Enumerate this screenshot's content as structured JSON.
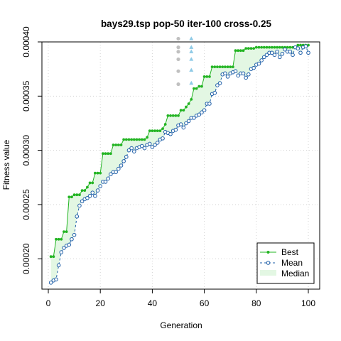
{
  "chart_data": {
    "type": "line",
    "title": "bays29.tsp pop-50 iter-100 cross-0.25",
    "xlabel": "Generation",
    "ylabel": "Fitness value",
    "xlim": [
      0,
      100
    ],
    "ylim": [
      0.000172,
      0.0004
    ],
    "xticks": [
      "0",
      "20",
      "40",
      "60",
      "80",
      "100"
    ],
    "yticks": [
      "0.00020",
      "0.00025",
      "0.00030",
      "0.00035",
      "0.00040"
    ],
    "grid": true,
    "legend_position": "bottom-right",
    "colors": {
      "best": "#22b422",
      "mean": "#1f5fa8",
      "mean_fill": "#8ec3e6",
      "median_band": "#e3f7e3",
      "dist_gray": "#c0c0c0",
      "dist_blue": "#8ecae6"
    },
    "x": [
      1,
      2,
      3,
      4,
      5,
      6,
      7,
      8,
      9,
      10,
      11,
      12,
      13,
      14,
      15,
      16,
      17,
      18,
      19,
      20,
      21,
      22,
      23,
      24,
      25,
      26,
      27,
      28,
      29,
      30,
      31,
      32,
      33,
      34,
      35,
      36,
      37,
      38,
      39,
      40,
      41,
      42,
      43,
      44,
      45,
      46,
      47,
      48,
      49,
      50,
      51,
      52,
      53,
      54,
      55,
      56,
      57,
      58,
      59,
      60,
      61,
      62,
      63,
      64,
      65,
      66,
      67,
      68,
      69,
      70,
      71,
      72,
      73,
      74,
      75,
      76,
      77,
      78,
      79,
      80,
      81,
      82,
      83,
      84,
      85,
      86,
      87,
      88,
      89,
      90,
      91,
      92,
      93,
      94,
      95,
      96,
      97,
      98,
      99,
      100
    ],
    "series": [
      {
        "name": "Best",
        "values": [
          0.000202,
          0.000202,
          0.000218,
          0.000218,
          0.000218,
          0.000225,
          0.000225,
          0.000257,
          0.000257,
          0.000259,
          0.000259,
          0.000259,
          0.000263,
          0.000263,
          0.000266,
          0.00027,
          0.00027,
          0.000279,
          0.000279,
          0.000279,
          0.000297,
          0.000297,
          0.000297,
          0.000297,
          0.000305,
          0.000305,
          0.000305,
          0.000305,
          0.00031,
          0.00031,
          0.00031,
          0.00031,
          0.00031,
          0.00031,
          0.00031,
          0.00031,
          0.00031,
          0.000312,
          0.000318,
          0.000318,
          0.000318,
          0.000318,
          0.000318,
          0.00032,
          0.000324,
          0.000332,
          0.000332,
          0.000332,
          0.000332,
          0.000332,
          0.000337,
          0.000337,
          0.00034,
          0.000343,
          0.000347,
          0.000357,
          0.000357,
          0.000359,
          0.000359,
          0.000368,
          0.000368,
          0.000368,
          0.000377,
          0.000377,
          0.000377,
          0.000377,
          0.000377,
          0.000377,
          0.000377,
          0.000377,
          0.000377,
          0.000392,
          0.000392,
          0.000392,
          0.000392,
          0.000394,
          0.000394,
          0.000394,
          0.000394,
          0.000395,
          0.000395,
          0.000395,
          0.000395,
          0.000395,
          0.000395,
          0.000395,
          0.000395,
          0.000395,
          0.000395,
          0.000395,
          0.000395,
          0.000395,
          0.000395,
          0.000395,
          0.000395,
          0.000397,
          0.000397,
          0.000397,
          0.000397,
          0.000397
        ]
      },
      {
        "name": "Mean",
        "values": [
          0.000178,
          0.00018,
          0.000181,
          0.000194,
          0.000206,
          0.00021,
          0.000212,
          0.000213,
          0.000218,
          0.000222,
          0.000239,
          0.000249,
          0.000253,
          0.000255,
          0.000256,
          0.000258,
          0.000261,
          0.000258,
          0.000263,
          0.000267,
          0.000271,
          0.000271,
          0.000274,
          0.000278,
          0.00028,
          0.00028,
          0.000283,
          0.000286,
          0.00029,
          0.000294,
          0.0003,
          0.000302,
          0.000299,
          0.000302,
          0.000303,
          0.000304,
          0.000302,
          0.000305,
          0.000306,
          0.000303,
          0.000305,
          0.000307,
          0.00031,
          0.000311,
          0.000317,
          0.000316,
          0.000315,
          0.000318,
          0.000319,
          0.000323,
          0.000324,
          0.000321,
          0.000325,
          0.000327,
          0.00033,
          0.00033,
          0.000332,
          0.000333,
          0.000335,
          0.000337,
          0.000343,
          0.000343,
          0.000352,
          0.000353,
          0.00036,
          0.000362,
          0.00037,
          0.000371,
          0.000368,
          0.000371,
          0.000372,
          0.000373,
          0.000369,
          0.000371,
          0.000371,
          0.000367,
          0.00037,
          0.000375,
          0.000376,
          0.000379,
          0.00038,
          0.000383,
          0.000386,
          0.000388,
          0.00039,
          0.00039,
          0.000388,
          0.000391,
          0.000386,
          0.000389,
          0.000393,
          0.000391,
          0.000391,
          0.000388,
          0.000395,
          0.000394,
          0.00039,
          0.000395,
          0.000396,
          0.00039
        ]
      }
    ],
    "legend": [
      {
        "key": "best",
        "label": "Best"
      },
      {
        "key": "mean",
        "label": "Mean"
      },
      {
        "key": "median",
        "label": "Median"
      }
    ],
    "distribution": [
      {
        "x": 50,
        "color": "gray",
        "values": [
          0.000403,
          0.000395,
          0.000391,
          0.000384,
          0.000373,
          0.000361
        ]
      },
      {
        "x": 55,
        "color": "blue",
        "values": [
          0.000403,
          0.000395,
          0.000391,
          0.000384,
          0.000374,
          0.000362
        ]
      }
    ]
  }
}
